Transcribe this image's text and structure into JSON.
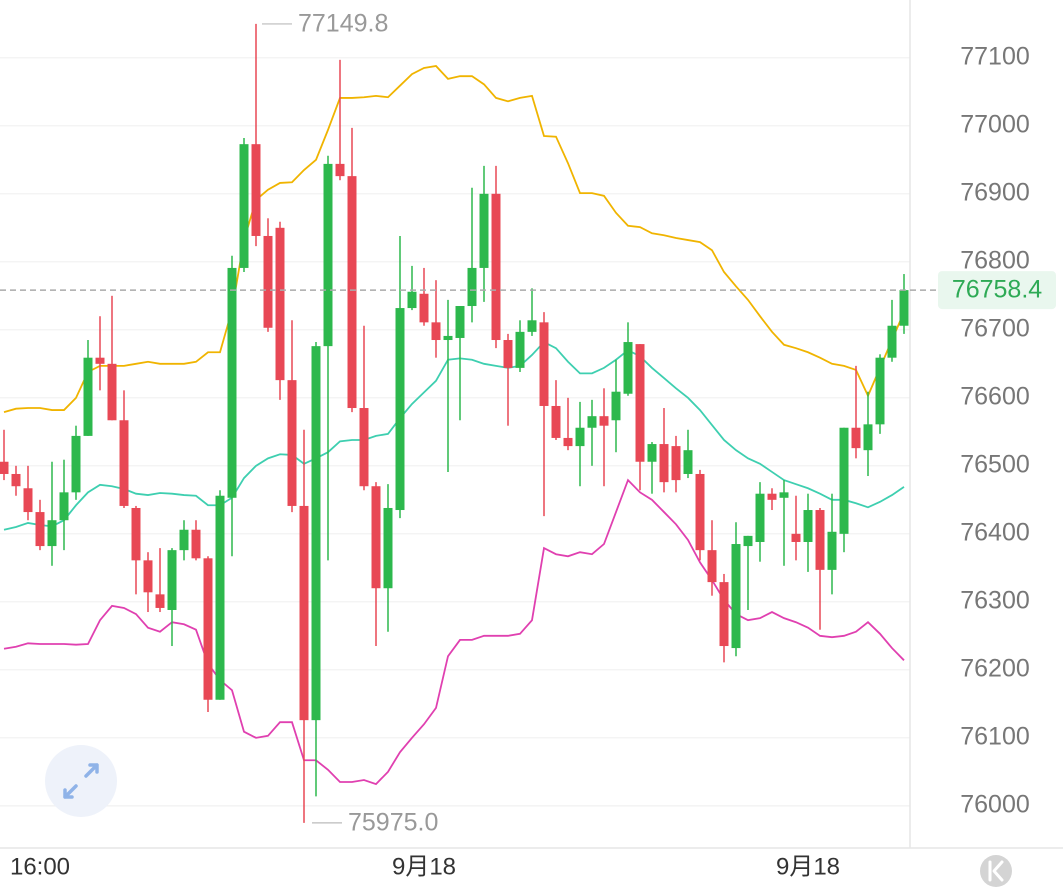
{
  "chart_data": {
    "type": "candlestick",
    "categories": [
      null,
      null,
      null,
      "16:00",
      null,
      null,
      null,
      null,
      null,
      null,
      null,
      null,
      null,
      null,
      null,
      null,
      null,
      null,
      null,
      null,
      null,
      null,
      null,
      null,
      null,
      null,
      null,
      null,
      null,
      null,
      null,
      null,
      null,
      null,
      null,
      "9月18",
      null,
      null,
      null,
      null,
      null,
      null,
      null,
      null,
      null,
      null,
      null,
      null,
      null,
      null,
      null,
      null,
      null,
      null,
      null,
      null,
      null,
      null,
      null,
      null,
      null,
      null,
      null,
      null,
      null,
      null,
      null,
      "9月18",
      null,
      null,
      null,
      null,
      null,
      null,
      null,
      null
    ],
    "open": [
      76506,
      76488,
      76467,
      76432,
      76382,
      76420,
      76461,
      76544,
      76659,
      76650,
      76567,
      76438,
      76361,
      76311,
      76288,
      76376,
      76406,
      76364,
      76156,
      76453,
      76791,
      76973,
      76838,
      76850,
      76626,
      76441,
      76126,
      76676,
      76944,
      76926,
      76585,
      76470,
      76320,
      76435,
      76732,
      76753,
      76711,
      76685,
      76688,
      76735,
      76791,
      76900,
      76685,
      76644,
      76697,
      76711,
      76588,
      76541,
      76529,
      76556,
      76573,
      76567,
      76606,
      76679,
      76506,
      76532,
      76529,
      76488,
      76488,
      76376,
      76329,
      76232,
      76382,
      76388,
      76459,
      76453,
      76400,
      76388,
      76435,
      76347,
      76400,
      76556,
      76523,
      76561,
      76659,
      76706
    ],
    "high": [
      76553,
      76500,
      76500,
      76450,
      76506,
      76509,
      76559,
      76685,
      76720,
      76750,
      76611,
      76441,
      76373,
      76379,
      76379,
      76420,
      76420,
      76367,
      76464,
      76809,
      76982,
      77149.8,
      76864,
      76859,
      76714,
      76553,
      76682,
      76956,
      77097,
      76997,
      76706,
      76476,
      76473,
      76838,
      76794,
      76791,
      76773,
      76744,
      76735,
      76909,
      76941,
      76941,
      76694,
      76714,
      76761,
      76726,
      76626,
      76600,
      76594,
      76597,
      76614,
      76656,
      76711,
      76679,
      76535,
      76585,
      76544,
      76553,
      76494,
      76420,
      76341,
      76417,
      76397,
      76476,
      76467,
      76479,
      76456,
      76459,
      76438,
      76459,
      76556,
      76647,
      76609,
      76664,
      76744,
      76782
    ],
    "low": [
      76479,
      76456,
      76420,
      76376,
      76353,
      76376,
      76450,
      76544,
      76611,
      76567,
      76438,
      76311,
      76285,
      76285,
      76235,
      76361,
      76361,
      76138,
      76156,
      76367,
      76785,
      76823,
      76697,
      76597,
      76432,
      75975,
      76014,
      76361,
      76920,
      76579,
      76464,
      76235,
      76256,
      76423,
      76729,
      76706,
      76659,
      76491,
      76567,
      76711,
      76741,
      76673,
      76559,
      76638,
      76691,
      76426,
      76538,
      76523,
      76470,
      76500,
      76470,
      76520,
      76603,
      76464,
      76459,
      76461,
      76461,
      76482,
      76361,
      76309,
      76211,
      76220,
      76288,
      76359,
      76435,
      76353,
      76361,
      76344,
      76259,
      76311,
      76373,
      76511,
      76485,
      76547,
      76653,
      76694
    ],
    "close": [
      76488,
      76470,
      76432,
      76382,
      76420,
      76461,
      76544,
      76659,
      76650,
      76567,
      76441,
      76361,
      76314,
      76291,
      76376,
      76406,
      76364,
      76156,
      76456,
      76791,
      76973,
      76838,
      76703,
      76626,
      76441,
      76126,
      76676,
      76944,
      76926,
      76585,
      76470,
      76320,
      76438,
      76732,
      76756,
      76711,
      76685,
      76691,
      76735,
      76791,
      76900,
      76685,
      76644,
      76697,
      76714,
      76588,
      76541,
      76529,
      76556,
      76573,
      76559,
      76609,
      76682,
      76506,
      76532,
      76476,
      76479,
      76523,
      76376,
      76329,
      76235,
      76385,
      76397,
      76459,
      76450,
      76461,
      76388,
      76435,
      76347,
      76403,
      76556,
      76526,
      76561,
      76659,
      76706,
      76758.4
    ],
    "up_color": "#2db84d",
    "down_color": "#e84855",
    "series": [
      {
        "color": "#f0b400",
        "values": [
          76579,
          76584,
          76585,
          76585,
          76582,
          76582,
          76600,
          76638,
          76647,
          76647,
          76647,
          76650,
          76653,
          76650,
          76650,
          76650,
          76653,
          76667,
          76667,
          76729,
          76832,
          76891,
          76906,
          76916,
          76917,
          76935,
          76950,
          76994,
          77041,
          77041,
          77042,
          77044,
          77042,
          77059,
          77076,
          77085,
          77088,
          77069,
          77073,
          77073,
          77061,
          77041,
          77036,
          77041,
          77044,
          76985,
          76984,
          76945,
          76901,
          76901,
          76897,
          76872,
          76853,
          76851,
          76842,
          76839,
          76835,
          76832,
          76829,
          76817,
          76785,
          76764,
          76744,
          76720,
          76697,
          76678,
          76673,
          76667,
          76659,
          76650,
          76647,
          76641,
          76603,
          76644,
          76685,
          76726
        ]
      },
      {
        "color": "#3ecfb0",
        "values": [
          76406,
          76410,
          76416,
          76413,
          76411,
          76420,
          76442,
          76461,
          76472,
          76470,
          76466,
          76459,
          76457,
          76460,
          76459,
          76457,
          76456,
          76442,
          76442,
          76453,
          76482,
          76500,
          76511,
          76517,
          76516,
          76503,
          76511,
          76520,
          76536,
          76538,
          76538,
          76544,
          76547,
          76570,
          76591,
          76608,
          76625,
          76656,
          76658,
          76656,
          76650,
          76647,
          76644,
          76647,
          76663,
          76682,
          76673,
          76653,
          76636,
          76636,
          76644,
          76656,
          76670,
          76661,
          76644,
          76629,
          76614,
          76600,
          76582,
          76560,
          76538,
          76523,
          76511,
          76503,
          76491,
          76479,
          76473,
          76467,
          76459,
          76450,
          76450,
          76445,
          76439,
          76447,
          76457,
          76469
        ]
      },
      {
        "color": "#e040b0",
        "values": [
          76231,
          76234,
          76239,
          76238,
          76238,
          76238,
          76237,
          76238,
          76273,
          76294,
          76291,
          76282,
          76262,
          76256,
          76270,
          76267,
          76259,
          76209,
          76185,
          76170,
          76109,
          76100,
          76103,
          76123,
          76123,
          76067,
          76067,
          76053,
          76035,
          76035,
          76038,
          76032,
          76050,
          76079,
          76100,
          76120,
          76144,
          76220,
          76244,
          76244,
          76250,
          76250,
          76250,
          76253,
          76273,
          76379,
          76370,
          76367,
          76373,
          76370,
          76385,
          76432,
          76479,
          76461,
          76450,
          76432,
          76414,
          76391,
          76358,
          76332,
          76303,
          76282,
          76273,
          76276,
          76285,
          76276,
          76270,
          76262,
          76250,
          76248,
          76250,
          76256,
          76270,
          76253,
          76232,
          76214
        ]
      }
    ],
    "ylim": [
      75938,
      77185
    ],
    "yticks": [
      76000,
      76100,
      76200,
      76300,
      76400,
      76500,
      76600,
      76700,
      76800,
      76900,
      77000,
      77100
    ],
    "grid": true,
    "last_price": 76758.4,
    "high_label": 77149.8,
    "low_label": {
      "value": 75975,
      "label": "75975.0"
    }
  }
}
